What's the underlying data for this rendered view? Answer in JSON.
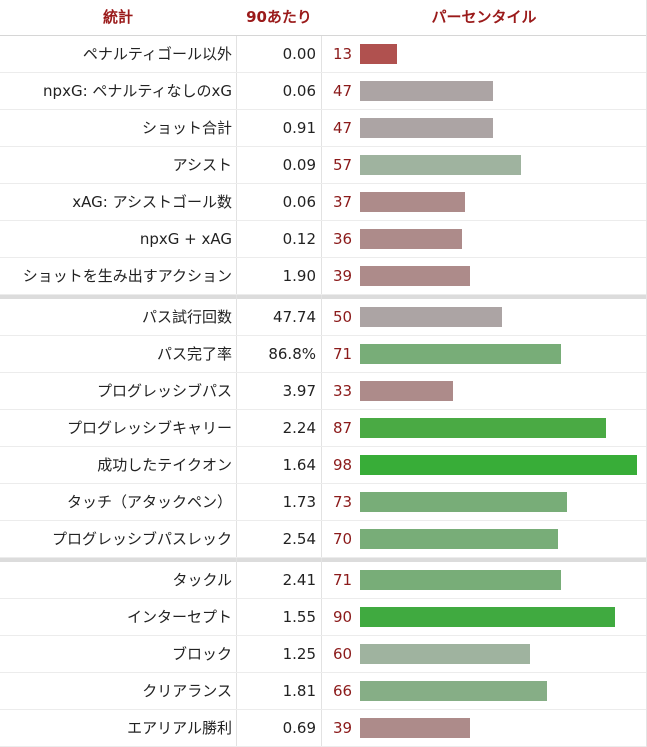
{
  "chart_data": {
    "type": "table",
    "columns": [
      "統計",
      "90あたり",
      "パーセンタイル"
    ],
    "groups": [
      [
        {
          "stat": "ペナルティゴール以外",
          "per90": "0.00",
          "percentile": 13,
          "color": "#b0514f"
        },
        {
          "stat": "npxG: ペナルティなしのxG",
          "per90": "0.06",
          "percentile": 47,
          "color": "#aca4a4"
        },
        {
          "stat": "ショット合計",
          "per90": "0.91",
          "percentile": 47,
          "color": "#aca4a4"
        },
        {
          "stat": "アシスト",
          "per90": "0.09",
          "percentile": 57,
          "color": "#9fb39f"
        },
        {
          "stat": "xAG: アシストゴール数",
          "per90": "0.06",
          "percentile": 37,
          "color": "#ad8b8a"
        },
        {
          "stat": "npxG + xAG",
          "per90": "0.12",
          "percentile": 36,
          "color": "#ad8b8a"
        },
        {
          "stat": "ショットを生み出すアクション",
          "per90": "1.90",
          "percentile": 39,
          "color": "#ad8b8a"
        }
      ],
      [
        {
          "stat": "パス試行回数",
          "per90": "47.74",
          "percentile": 50,
          "color": "#aca4a4"
        },
        {
          "stat": "パス完了率",
          "per90": "86.8%",
          "percentile": 71,
          "color": "#78ad78"
        },
        {
          "stat": "プログレッシブパス",
          "per90": "3.97",
          "percentile": 33,
          "color": "#ad8b8a"
        },
        {
          "stat": "プログレッシブキャリー",
          "per90": "2.24",
          "percentile": 87,
          "color": "#4aaa44"
        },
        {
          "stat": "成功したテイクオン",
          "per90": "1.64",
          "percentile": 98,
          "color": "#38ad38"
        },
        {
          "stat": "タッチ（アタックペン）",
          "per90": "1.73",
          "percentile": 73,
          "color": "#78ad78"
        },
        {
          "stat": "プログレッシブパスレック",
          "per90": "2.54",
          "percentile": 70,
          "color": "#78ad78"
        }
      ],
      [
        {
          "stat": "タックル",
          "per90": "2.41",
          "percentile": 71,
          "color": "#78ad78"
        },
        {
          "stat": "インターセプト",
          "per90": "1.55",
          "percentile": 90,
          "color": "#40aa40"
        },
        {
          "stat": "ブロック",
          "per90": "1.25",
          "percentile": 60,
          "color": "#9fb39f"
        },
        {
          "stat": "クリアランス",
          "per90": "1.81",
          "percentile": 66,
          "color": "#86ae86"
        },
        {
          "stat": "エアリアル勝利",
          "per90": "0.69",
          "percentile": 39,
          "color": "#ad8b8a"
        }
      ]
    ],
    "xlim": [
      0,
      100
    ]
  }
}
